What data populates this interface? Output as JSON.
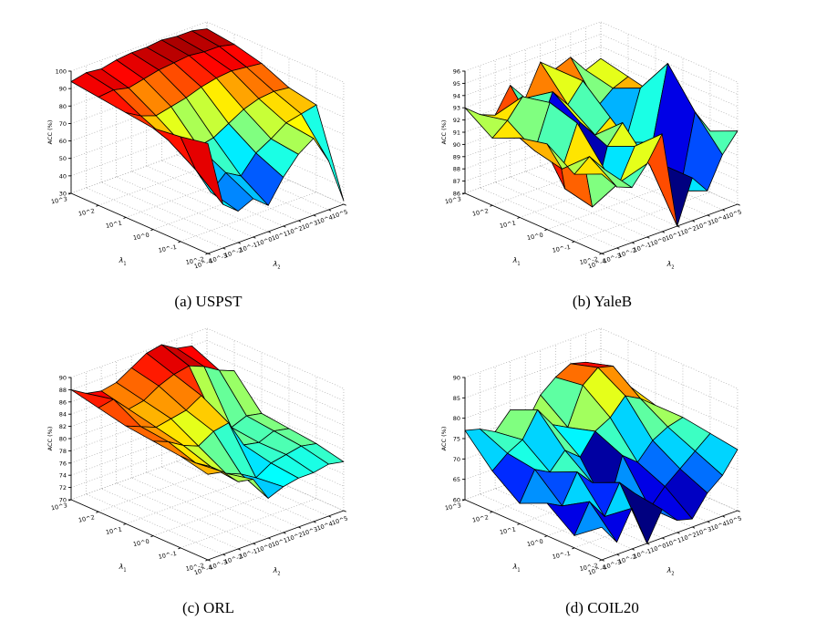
{
  "figure": {
    "background": "#ffffff",
    "colormap": "jet",
    "edge_color": "#000000",
    "grid_color": "#aaaaaa",
    "axis_color": "#000000"
  },
  "chart_data": [
    {
      "id": "a",
      "type": "surface",
      "caption": "(a) USPST",
      "zlabel": "ACC (%)",
      "xlabel": "λ_2",
      "ylabel": "λ_1",
      "x_ticklabels": [
        "10^-4",
        "10^-3",
        "10^-2",
        "10^-1",
        "10^0",
        "10^1",
        "10^2",
        "10^3",
        "10^4",
        "10^5"
      ],
      "y_ticklabels_front_to_back": [
        "10^-2",
        "10^-1",
        "10^0",
        "10^1",
        "10^2",
        "10^3"
      ],
      "zlim": [
        30,
        100
      ],
      "z_ticks": [
        30,
        40,
        50,
        60,
        70,
        80,
        90,
        100
      ],
      "z_grid_rows_front_to_back": [
        [
          93,
          55,
          48,
          52,
          45,
          58,
          68,
          74,
          58,
          32
        ],
        [
          90,
          68,
          52,
          60,
          55,
          65,
          70,
          76,
          78,
          80
        ],
        [
          88,
          78,
          72,
          68,
          70,
          75,
          80,
          83,
          84,
          83
        ],
        [
          90,
          85,
          82,
          84,
          86,
          89,
          91,
          92,
          91,
          90
        ],
        [
          92,
          93,
          91,
          93,
          95,
          96,
          97,
          96,
          96,
          94
        ],
        [
          94,
          96,
          95,
          97,
          98,
          98,
          99,
          98,
          98,
          96
        ]
      ]
    },
    {
      "id": "b",
      "type": "surface",
      "caption": "(b) YaleB",
      "zlabel": "ACC (%)",
      "xlabel": "λ_2",
      "ylabel": "λ_1",
      "x_ticklabels": [
        "10^-4",
        "10^-3",
        "10^-2",
        "10^-1",
        "10^0",
        "10^1",
        "10^2",
        "10^3",
        "10^4",
        "10^5"
      ],
      "y_ticklabels_front_to_back": [
        "10^-2",
        "10^-1",
        "10^0",
        "10^1",
        "10^2",
        "10^3"
      ],
      "zlim": [
        86,
        96
      ],
      "z_ticks": [
        86,
        87,
        88,
        89,
        90,
        91,
        92,
        93,
        94,
        95,
        96
      ],
      "z_grid_rows_front_to_back": [
        [
          92.5,
          91,
          90.5,
          92,
          94,
          86,
          89.5,
          88,
          90.5,
          92
        ],
        [
          91.5,
          92.5,
          91,
          89.5,
          92,
          90,
          89.5,
          87,
          93,
          91
        ],
        [
          93,
          90.5,
          93.8,
          86.5,
          91,
          92.5,
          89.5,
          90,
          96,
          92
        ],
        [
          92.5,
          91,
          94.5,
          87,
          92,
          90.5,
          91.5,
          89,
          93,
          92
        ],
        [
          91.5,
          92.5,
          94,
          90.5,
          93.5,
          92,
          93.5,
          91,
          92,
          92.5
        ],
        [
          93,
          92,
          91.5,
          93.5,
          92,
          94.5,
          93.5,
          94,
          92.5,
          93
        ]
      ]
    },
    {
      "id": "c",
      "type": "surface",
      "caption": "(c) ORL",
      "zlabel": "ACC (%)",
      "xlabel": "λ_2",
      "ylabel": "λ_1",
      "x_ticklabels": [
        "10^-4",
        "10^-3",
        "10^-2",
        "10^-1",
        "10^0",
        "10^1",
        "10^2",
        "10^3",
        "10^4",
        "10^5"
      ],
      "y_ticklabels_front_to_back": [
        "10^-2",
        "10^-1",
        "10^0",
        "10^1",
        "10^2",
        "10^3"
      ],
      "zlim": [
        70,
        90
      ],
      "z_ticks": [
        70,
        72,
        74,
        76,
        78,
        80,
        82,
        84,
        86,
        88,
        90
      ],
      "z_grid_rows_front_to_back": [
        [
          84,
          83.5,
          81,
          80.5,
          76.5,
          77.5,
          78,
          78,
          78.5,
          78
        ],
        [
          85,
          83,
          81.5,
          79.5,
          78.5,
          77,
          78.5,
          79,
          79.5,
          79
        ],
        [
          85.5,
          84.5,
          83,
          82,
          83.5,
          84,
          79.5,
          79,
          80,
          79.5
        ],
        [
          86,
          85,
          84,
          84.5,
          85,
          86.5,
          81,
          79.5,
          80.5,
          80
        ],
        [
          87,
          87.5,
          85,
          85.5,
          87,
          88,
          88.5,
          87.5,
          86,
          85
        ],
        [
          88,
          86.5,
          86,
          86.5,
          88,
          89.5,
          90,
          88.5,
          88,
          83
        ]
      ]
    },
    {
      "id": "d",
      "type": "surface",
      "caption": "(d) COIL20",
      "zlabel": "ACC (%)",
      "xlabel": "λ_2",
      "ylabel": "λ_1",
      "x_ticklabels": [
        "10^-4",
        "10^-3",
        "10^-2",
        "10^-1",
        "10^0",
        "10^1",
        "10^2",
        "10^3",
        "10^4",
        "10^5"
      ],
      "y_ticklabels_front_to_back": [
        "10^-2",
        "10^-1",
        "10^0",
        "10^1",
        "10^2",
        "10^3"
      ],
      "zlim": [
        60,
        90
      ],
      "z_ticks": [
        60,
        65,
        70,
        75,
        80,
        85,
        90
      ],
      "z_grid_rows_front_to_back": [
        [
          68,
          63,
          70,
          60,
          67,
          63,
          62,
          67,
          70,
          75
        ],
        [
          63,
          70,
          65,
          72,
          68,
          63,
          67,
          70,
          73,
          76
        ],
        [
          68,
          66,
          73,
          69,
          61,
          73,
          70,
          74,
          76,
          77
        ],
        [
          65,
          72,
          70,
          74,
          71,
          76,
          78,
          82,
          80,
          77
        ],
        [
          70,
          73,
          75,
          81,
          76,
          74,
          83,
          86,
          85,
          79
        ],
        [
          77,
          76,
          74,
          78,
          73,
          79,
          82,
          84,
          83,
          79
        ]
      ]
    }
  ]
}
